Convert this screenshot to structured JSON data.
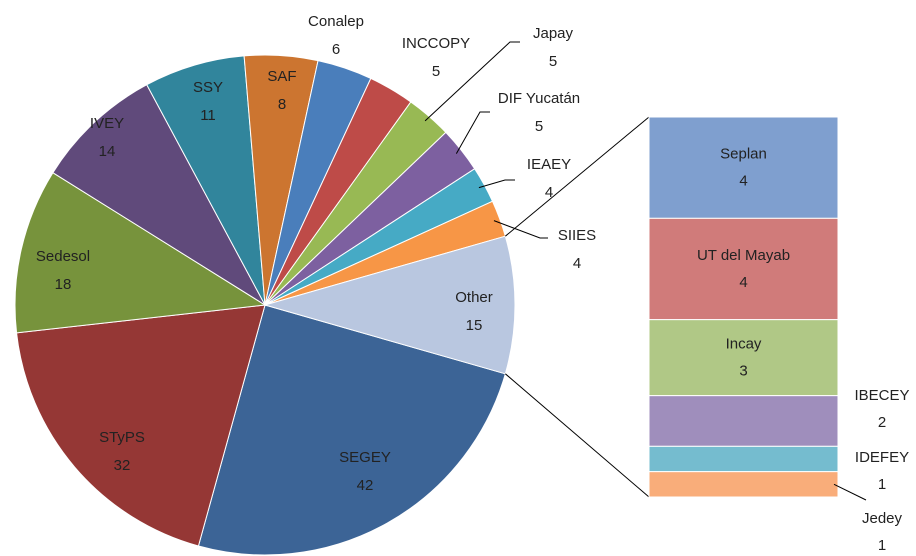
{
  "chart_data": {
    "type": "pie",
    "categories": [
      "SEGEY",
      "STyPS",
      "Sedesol",
      "IVEY",
      "SSY",
      "SAF",
      "Conalep",
      "INCCOPY",
      "Japay",
      "DIF Yucatán",
      "IEAEY",
      "SIIES",
      "Other"
    ],
    "values": [
      42,
      32,
      18,
      14,
      11,
      8,
      6,
      5,
      5,
      5,
      4,
      4,
      15
    ],
    "colors": [
      "#3c6496",
      "#953735",
      "#77933c",
      "#604a7b",
      "#31859c",
      "#cc7530",
      "#4a7ebb",
      "#be4b48",
      "#98b954",
      "#7d60a0",
      "#46aac5",
      "#f79646",
      "#b9c7e0"
    ],
    "other_breakdown": {
      "categories": [
        "Seplan",
        "UT del Mayab",
        "Incay",
        "IBECEY",
        "IDEFEY",
        "Jedey"
      ],
      "values": [
        4,
        4,
        3,
        2,
        1,
        1
      ],
      "colors": [
        "#7f9fcf",
        "#d07b7a",
        "#b0c886",
        "#9f8ebc",
        "#75bccf",
        "#f9ad7a"
      ]
    }
  }
}
